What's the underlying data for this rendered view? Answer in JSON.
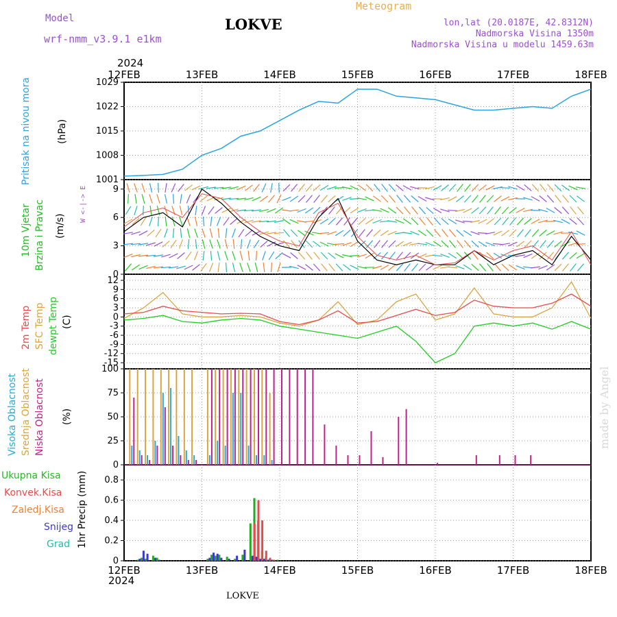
{
  "header": {
    "model_label": "Model",
    "model_name": "wrf-nmm_v3.9.1 e1km",
    "station": "LOKVE",
    "meteogram_label": "Meteogram",
    "coords": "lon,lat (20.0187E, 42.8312N)",
    "altitude": "Nadmorska Visina 1350m",
    "model_altitude": "Nadmorska Visina u modelu 1459.63m",
    "year_top": "2024",
    "year_bottom": "2024",
    "footer_station": "LOKVE",
    "credit": "made by Angel"
  },
  "colors": {
    "pressure": "#2aa3e0",
    "wind_label": "#22bb22",
    "temp2m": "#e84a4a",
    "sfc": "#d9a441",
    "dew": "#22cc22",
    "cloud_high": "#27a8d8",
    "cloud_mid": "#d9a441",
    "cloud_low": "#c0208a",
    "rain_total": "#22aa22",
    "rain_conv": "#e84a4a",
    "rain_frz": "#f08030",
    "snow": "#3a3ad0",
    "graupel": "#22bbaa",
    "purple": "#9b4fd0",
    "orange": "#e8b050"
  },
  "chart_data": [
    {
      "type": "line",
      "panel": "pressure",
      "ylabel_main": "Pritisak na nivou mora",
      "ylabel_unit": "(hPa)",
      "x_ticks": [
        "12FEB",
        "13FEB",
        "14FEB",
        "15FEB",
        "16FEB",
        "17FEB",
        "18FEB"
      ],
      "ylim": [
        1001,
        1029
      ],
      "yticks": [
        1001,
        1008,
        1015,
        1022,
        1029
      ],
      "x": [
        0,
        0.25,
        0.5,
        0.75,
        1,
        1.25,
        1.5,
        1.75,
        2,
        2.25,
        2.5,
        2.75,
        3,
        3.25,
        3.5,
        3.75,
        4,
        4.25,
        4.5,
        4.75,
        5,
        5.25,
        5.5,
        5.75,
        6
      ],
      "series": [
        {
          "values": [
            1002,
            1002.2,
            1002.5,
            1004,
            1008,
            1010,
            1013.5,
            1015,
            1018,
            1021,
            1023.5,
            1023,
            1027,
            1027,
            1025,
            1024.5,
            1024,
            1022.5,
            1021,
            1021,
            1021.5,
            1022,
            1021.5,
            1025,
            1027
          ]
        }
      ]
    },
    {
      "type": "line",
      "panel": "wind",
      "ylabel_main": "10m Vjetar",
      "ylabel_sub": "Brzina i Pravac",
      "ylabel_unit": "(m/s)",
      "compass_label": "W <-|-> E",
      "ylim": [
        0,
        10
      ],
      "yticks": [
        0,
        3,
        6,
        9
      ],
      "x": [
        0,
        0.25,
        0.5,
        0.75,
        1,
        1.25,
        1.5,
        1.75,
        2,
        2.25,
        2.5,
        2.75,
        3,
        3.25,
        3.5,
        3.75,
        4,
        4.25,
        4.5,
        4.75,
        5,
        5.25,
        5.5,
        5.75,
        6
      ],
      "series": [
        {
          "values": [
            4.5,
            6,
            6.5,
            5,
            9,
            7.5,
            5.5,
            4,
            3,
            2.5,
            6,
            8,
            3.5,
            1.5,
            1,
            1.5,
            1,
            1,
            2.5,
            1,
            2,
            2.5,
            1,
            4,
            1.5
          ]
        },
        {
          "values": [
            5,
            6.5,
            7,
            6,
            8.5,
            8,
            6,
            4.5,
            3.5,
            3,
            6.5,
            7.5,
            4,
            2,
            1.5,
            2,
            1,
            1.2,
            2.5,
            1.5,
            2.5,
            3,
            1.5,
            4.5,
            1
          ]
        }
      ]
    },
    {
      "type": "line",
      "panel": "temperature",
      "ylabel_a": "2m Temp",
      "ylabel_b": "SFC Temp",
      "ylabel_c": "dewpt Temp",
      "ylabel_unit": "(C)",
      "ylim": [
        -17,
        14
      ],
      "yticks": [
        -15,
        -12,
        -9,
        -6,
        -3,
        0,
        3,
        6,
        9,
        12
      ],
      "x": [
        0,
        0.25,
        0.5,
        0.75,
        1,
        1.25,
        1.5,
        1.75,
        2,
        2.25,
        2.5,
        2.75,
        3,
        3.25,
        3.5,
        3.75,
        4,
        4.25,
        4.5,
        4.75,
        5,
        5.25,
        5.5,
        5.75,
        6
      ],
      "series": [
        {
          "name": "2m Temp",
          "values": [
            1,
            1.5,
            3.5,
            2,
            1.5,
            1,
            1.2,
            1,
            -1.5,
            -2.5,
            -1,
            2,
            -2,
            -1.5,
            0.5,
            2.5,
            0.5,
            1.5,
            5.5,
            3.5,
            3,
            3,
            4.5,
            7.5,
            3.5
          ]
        },
        {
          "name": "SFC Temp",
          "values": [
            -0.5,
            3,
            8,
            1,
            0,
            0,
            0.5,
            0,
            -2,
            -3,
            -1,
            5,
            -2.5,
            -1,
            5,
            7.5,
            -1,
            1,
            9.5,
            1,
            0,
            0,
            3,
            11.5,
            -0.5
          ]
        },
        {
          "name": "dewpt Temp",
          "values": [
            -1,
            -0.5,
            0.5,
            -1.5,
            -2,
            -1,
            -0.5,
            -1,
            -3,
            -4,
            -5,
            -6,
            -7,
            -5,
            -3,
            -8,
            -15,
            -12,
            -3,
            -2,
            -3,
            -2,
            -4,
            -1.5,
            -4
          ]
        }
      ]
    },
    {
      "type": "bar",
      "panel": "clouds",
      "ylabel_a": "Visoka Oblacnost",
      "ylabel_b": "Srednja Oblacnost",
      "ylabel_c": "Niska Oblacnost",
      "ylabel_unit": "(%)",
      "ylim": [
        0,
        100
      ],
      "yticks": [
        0,
        25,
        50,
        75,
        100
      ],
      "x": [
        0.1,
        0.2,
        0.3,
        0.4,
        0.5,
        0.6,
        0.7,
        0.8,
        0.9,
        1.1,
        1.2,
        1.3,
        1.4,
        1.5,
        1.6,
        1.7,
        1.8,
        1.9,
        2.0,
        2.1,
        2.2,
        2.3,
        2.4,
        2.55,
        2.7,
        2.85,
        3.0,
        3.15,
        3.3,
        3.5,
        3.6,
        4.0,
        4.5,
        4.8,
        5.0,
        5.2
      ],
      "series": [
        {
          "name": "Srednja Oblacnost",
          "values": [
            100,
            100,
            100,
            100,
            100,
            100,
            100,
            100,
            100,
            100,
            100,
            100,
            100,
            100,
            100,
            100,
            100,
            75,
            0,
            0,
            0,
            0,
            0,
            0,
            0,
            0,
            0,
            0,
            0,
            0,
            0,
            0,
            0,
            0,
            0,
            0
          ]
        },
        {
          "name": "Visoka Oblacnost",
          "values": [
            20,
            15,
            10,
            25,
            75,
            80,
            30,
            15,
            10,
            10,
            25,
            20,
            75,
            75,
            20,
            10,
            10,
            5,
            0,
            0,
            0,
            0,
            0,
            0,
            0,
            0,
            0,
            0,
            0,
            0,
            0,
            0,
            0,
            0,
            0,
            0
          ]
        },
        {
          "name": "Niska Oblacnost",
          "values": [
            70,
            10,
            5,
            20,
            60,
            20,
            10,
            5,
            5,
            100,
            100,
            100,
            100,
            100,
            100,
            100,
            100,
            100,
            100,
            100,
            100,
            100,
            100,
            42,
            20,
            10,
            10,
            35,
            8,
            50,
            58,
            2,
            10,
            10,
            10,
            10
          ]
        }
      ]
    },
    {
      "type": "bar",
      "panel": "precipitation",
      "ylabel_a": "Ukupna Kisa",
      "ylabel_b": "Konvek.Kisa",
      "ylabel_c": "Zaledj.Kisa",
      "ylabel_d": "Snijeg",
      "ylabel_e": "Grad",
      "ylabel_unit": "1hr Precip (mm)",
      "ylim": [
        0,
        0.95
      ],
      "yticks": [
        0,
        0.2,
        0.4,
        0.6,
        0.8
      ],
      "x": [
        0.2,
        0.25,
        0.3,
        0.4,
        0.45,
        1.1,
        1.15,
        1.2,
        1.25,
        1.35,
        1.45,
        1.55,
        1.65,
        1.7,
        1.75,
        1.8,
        1.85,
        1.9,
        2.0
      ],
      "series": [
        {
          "name": "Ukupna Kisa",
          "values": [
            0.01,
            0.03,
            0.02,
            0.05,
            0.03,
            0.02,
            0.06,
            0.05,
            0.06,
            0.04,
            0.02,
            0.06,
            0.37,
            0.62,
            0.4,
            0.1,
            0.04,
            0.02,
            0.01
          ]
        },
        {
          "name": "Snijeg",
          "values": [
            0.02,
            0.1,
            0.07,
            0.03,
            0.01,
            0.03,
            0.08,
            0.07,
            0.03,
            0.02,
            0.05,
            0.11,
            0.05,
            0.04,
            0.02,
            0.02,
            0.01,
            0.01,
            0.0
          ]
        },
        {
          "name": "Konvek.Kisa",
          "values": [
            0,
            0,
            0,
            0,
            0,
            0,
            0,
            0,
            0,
            0,
            0,
            0,
            0.37,
            0.6,
            0.4,
            0.1,
            0.03,
            0.01,
            0
          ]
        }
      ]
    }
  ]
}
